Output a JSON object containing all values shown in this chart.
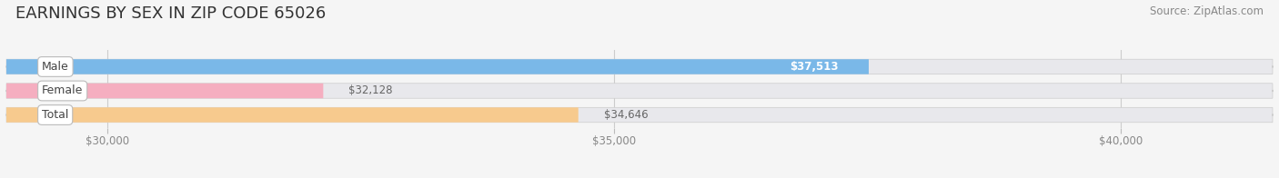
{
  "title": "EARNINGS BY SEX IN ZIP CODE 65026",
  "source": "Source: ZipAtlas.com",
  "categories": [
    "Male",
    "Female",
    "Total"
  ],
  "values": [
    37513,
    32128,
    34646
  ],
  "bar_colors": [
    "#7ab8e8",
    "#f5aec0",
    "#f7ca8e"
  ],
  "label_texts": [
    "$37,513",
    "$32,128",
    "$34,646"
  ],
  "label_inside": [
    true,
    false,
    false
  ],
  "xlim": [
    29000,
    41500
  ],
  "xticks": [
    30000,
    35000,
    40000
  ],
  "xtick_labels": [
    "$30,000",
    "$35,000",
    "$40,000"
  ],
  "background_color": "#f5f5f5",
  "bar_bg_color": "#e8e8ec",
  "title_fontsize": 13,
  "source_fontsize": 8.5,
  "bar_height": 0.62,
  "label_color_inside": "#ffffff",
  "label_color_outside": "#666666"
}
